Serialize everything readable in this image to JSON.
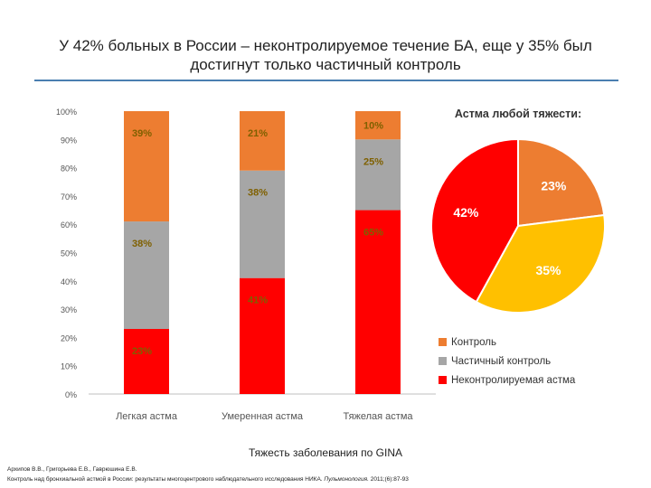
{
  "title_line1": "У 42% больных в России – неконтролируемое течение БА, еще у 35% был",
  "title_line2": "достигнут только частичный контроль",
  "chart_data": [
    {
      "type": "bar",
      "stacked": true,
      "categories": [
        "Легкая астма",
        "Умеренная астма",
        "Тяжелая астма"
      ],
      "series": [
        {
          "name": "Неконтролируемая астма",
          "values": [
            23,
            41,
            65
          ],
          "color": "#ff0000"
        },
        {
          "name": "Частичный контроль",
          "values": [
            38,
            38,
            25
          ],
          "color": "#a6a6a6"
        },
        {
          "name": "Контроль",
          "values": [
            39,
            21,
            10
          ],
          "color": "#ed7d31"
        }
      ],
      "labels": [
        [
          "23%",
          "41%",
          "65%"
        ],
        [
          "38%",
          "38%",
          "25%"
        ],
        [
          "39%",
          "21%",
          "10%"
        ]
      ],
      "yticks": [
        "0%",
        "10%",
        "20%",
        "30%",
        "40%",
        "50%",
        "60%",
        "70%",
        "80%",
        "90%",
        "100%"
      ],
      "ylim": [
        0,
        100
      ],
      "xlabel": "Тяжесть заболевания по GINA",
      "grid": false
    },
    {
      "type": "pie",
      "title": "Астма любой тяжести:",
      "slices": [
        {
          "name": "Контроль",
          "value": 23,
          "label": "23%",
          "color": "#ed7d31"
        },
        {
          "name": "Частичный контроль",
          "value": 35,
          "label": "35%",
          "color": "#ffc000"
        },
        {
          "name": "Неконтролируемая астма",
          "value": 42,
          "label": "42%",
          "color": "#ff0000"
        }
      ],
      "legend_position": "bottom"
    }
  ],
  "legend": [
    {
      "label": "Контроль",
      "color": "#ed7d31"
    },
    {
      "label": "Частичный контроль",
      "color": "#a6a6a6"
    },
    {
      "label": "Неконтролируемая астма",
      "color": "#ff0000"
    }
  ],
  "reference": {
    "line1": "Архипов В.В., Григорьева Е.В., Гаврюшина Е.В.",
    "line2_text": "Контроль над бронхиальной астмой в России: результаты многоцентрового наблюдательного исследования НИКА.",
    "line2_journal": "Пульмонология.",
    "line2_tail": "2011;(6):87-93"
  }
}
